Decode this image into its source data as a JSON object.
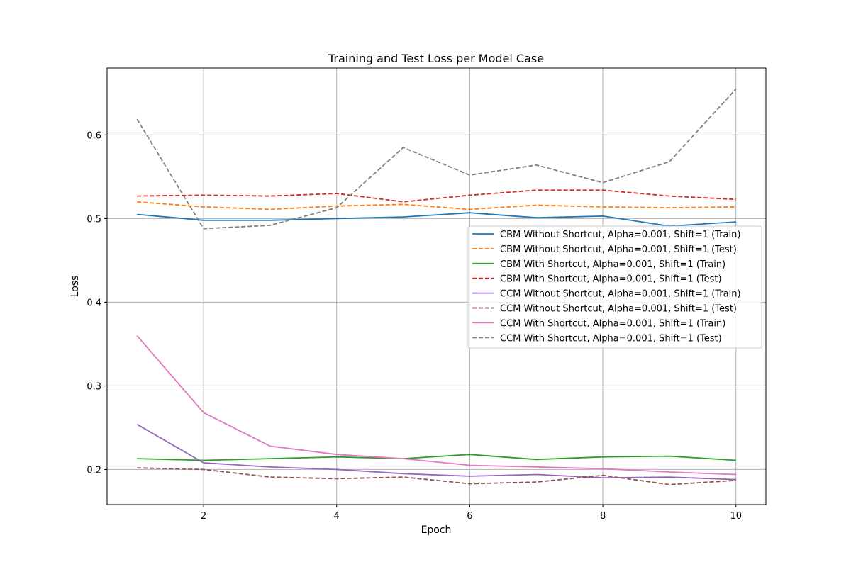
{
  "chart_data": {
    "type": "line",
    "title": "Training and Test Loss per Model Case",
    "xlabel": "Epoch",
    "ylabel": "Loss",
    "xlim": [
      0.55,
      10.45
    ],
    "ylim": [
      0.158,
      0.68
    ],
    "xticks": [
      2,
      4,
      6,
      8,
      10
    ],
    "yticks": [
      0.2,
      0.3,
      0.4,
      0.5,
      0.6
    ],
    "ytick_labels": [
      "0.2",
      "0.3",
      "0.4",
      "0.5",
      "0.6"
    ],
    "grid": true,
    "legend_position": "center-right",
    "x": [
      1,
      2,
      3,
      4,
      5,
      6,
      7,
      8,
      9,
      10
    ],
    "series": [
      {
        "name": "CBM Without Shortcut, Alpha=0.001, Shift=1 (Train)",
        "color": "#1f77b4",
        "dash": "solid",
        "values": [
          0.505,
          0.498,
          0.498,
          0.5,
          0.502,
          0.507,
          0.501,
          0.503,
          0.491,
          0.496
        ]
      },
      {
        "name": "CBM Without Shortcut, Alpha=0.001, Shift=1 (Test)",
        "color": "#ff7f0e",
        "dash": "dashed",
        "values": [
          0.52,
          0.514,
          0.511,
          0.515,
          0.517,
          0.511,
          0.516,
          0.514,
          0.513,
          0.514
        ]
      },
      {
        "name": "CBM With Shortcut, Alpha=0.001, Shift=1 (Train)",
        "color": "#2ca02c",
        "dash": "solid",
        "values": [
          0.213,
          0.211,
          0.213,
          0.215,
          0.213,
          0.218,
          0.212,
          0.215,
          0.216,
          0.211
        ]
      },
      {
        "name": "CBM With Shortcut, Alpha=0.001, Shift=1 (Test)",
        "color": "#d62728",
        "dash": "dashed",
        "values": [
          0.527,
          0.528,
          0.527,
          0.53,
          0.52,
          0.528,
          0.534,
          0.534,
          0.527,
          0.523
        ]
      },
      {
        "name": "CCM Without Shortcut, Alpha=0.001, Shift=1 (Train)",
        "color": "#9467bd",
        "dash": "solid",
        "values": [
          0.254,
          0.208,
          0.203,
          0.2,
          0.195,
          0.192,
          0.194,
          0.19,
          0.191,
          0.188
        ]
      },
      {
        "name": "CCM Without Shortcut, Alpha=0.001, Shift=1 (Test)",
        "color": "#8c564b",
        "dash": "dashed",
        "values": [
          0.202,
          0.2,
          0.191,
          0.189,
          0.191,
          0.183,
          0.185,
          0.193,
          0.182,
          0.187
        ]
      },
      {
        "name": "CCM With Shortcut, Alpha=0.001, Shift=1 (Train)",
        "color": "#e377c2",
        "dash": "solid",
        "values": [
          0.36,
          0.268,
          0.228,
          0.218,
          0.213,
          0.205,
          0.203,
          0.201,
          0.197,
          0.194
        ]
      },
      {
        "name": "CCM With Shortcut, Alpha=0.001, Shift=1 (Test)",
        "color": "#7f7f7f",
        "dash": "dashed",
        "values": [
          0.619,
          0.488,
          0.492,
          0.513,
          0.585,
          0.552,
          0.564,
          0.543,
          0.568,
          0.655
        ]
      }
    ]
  }
}
